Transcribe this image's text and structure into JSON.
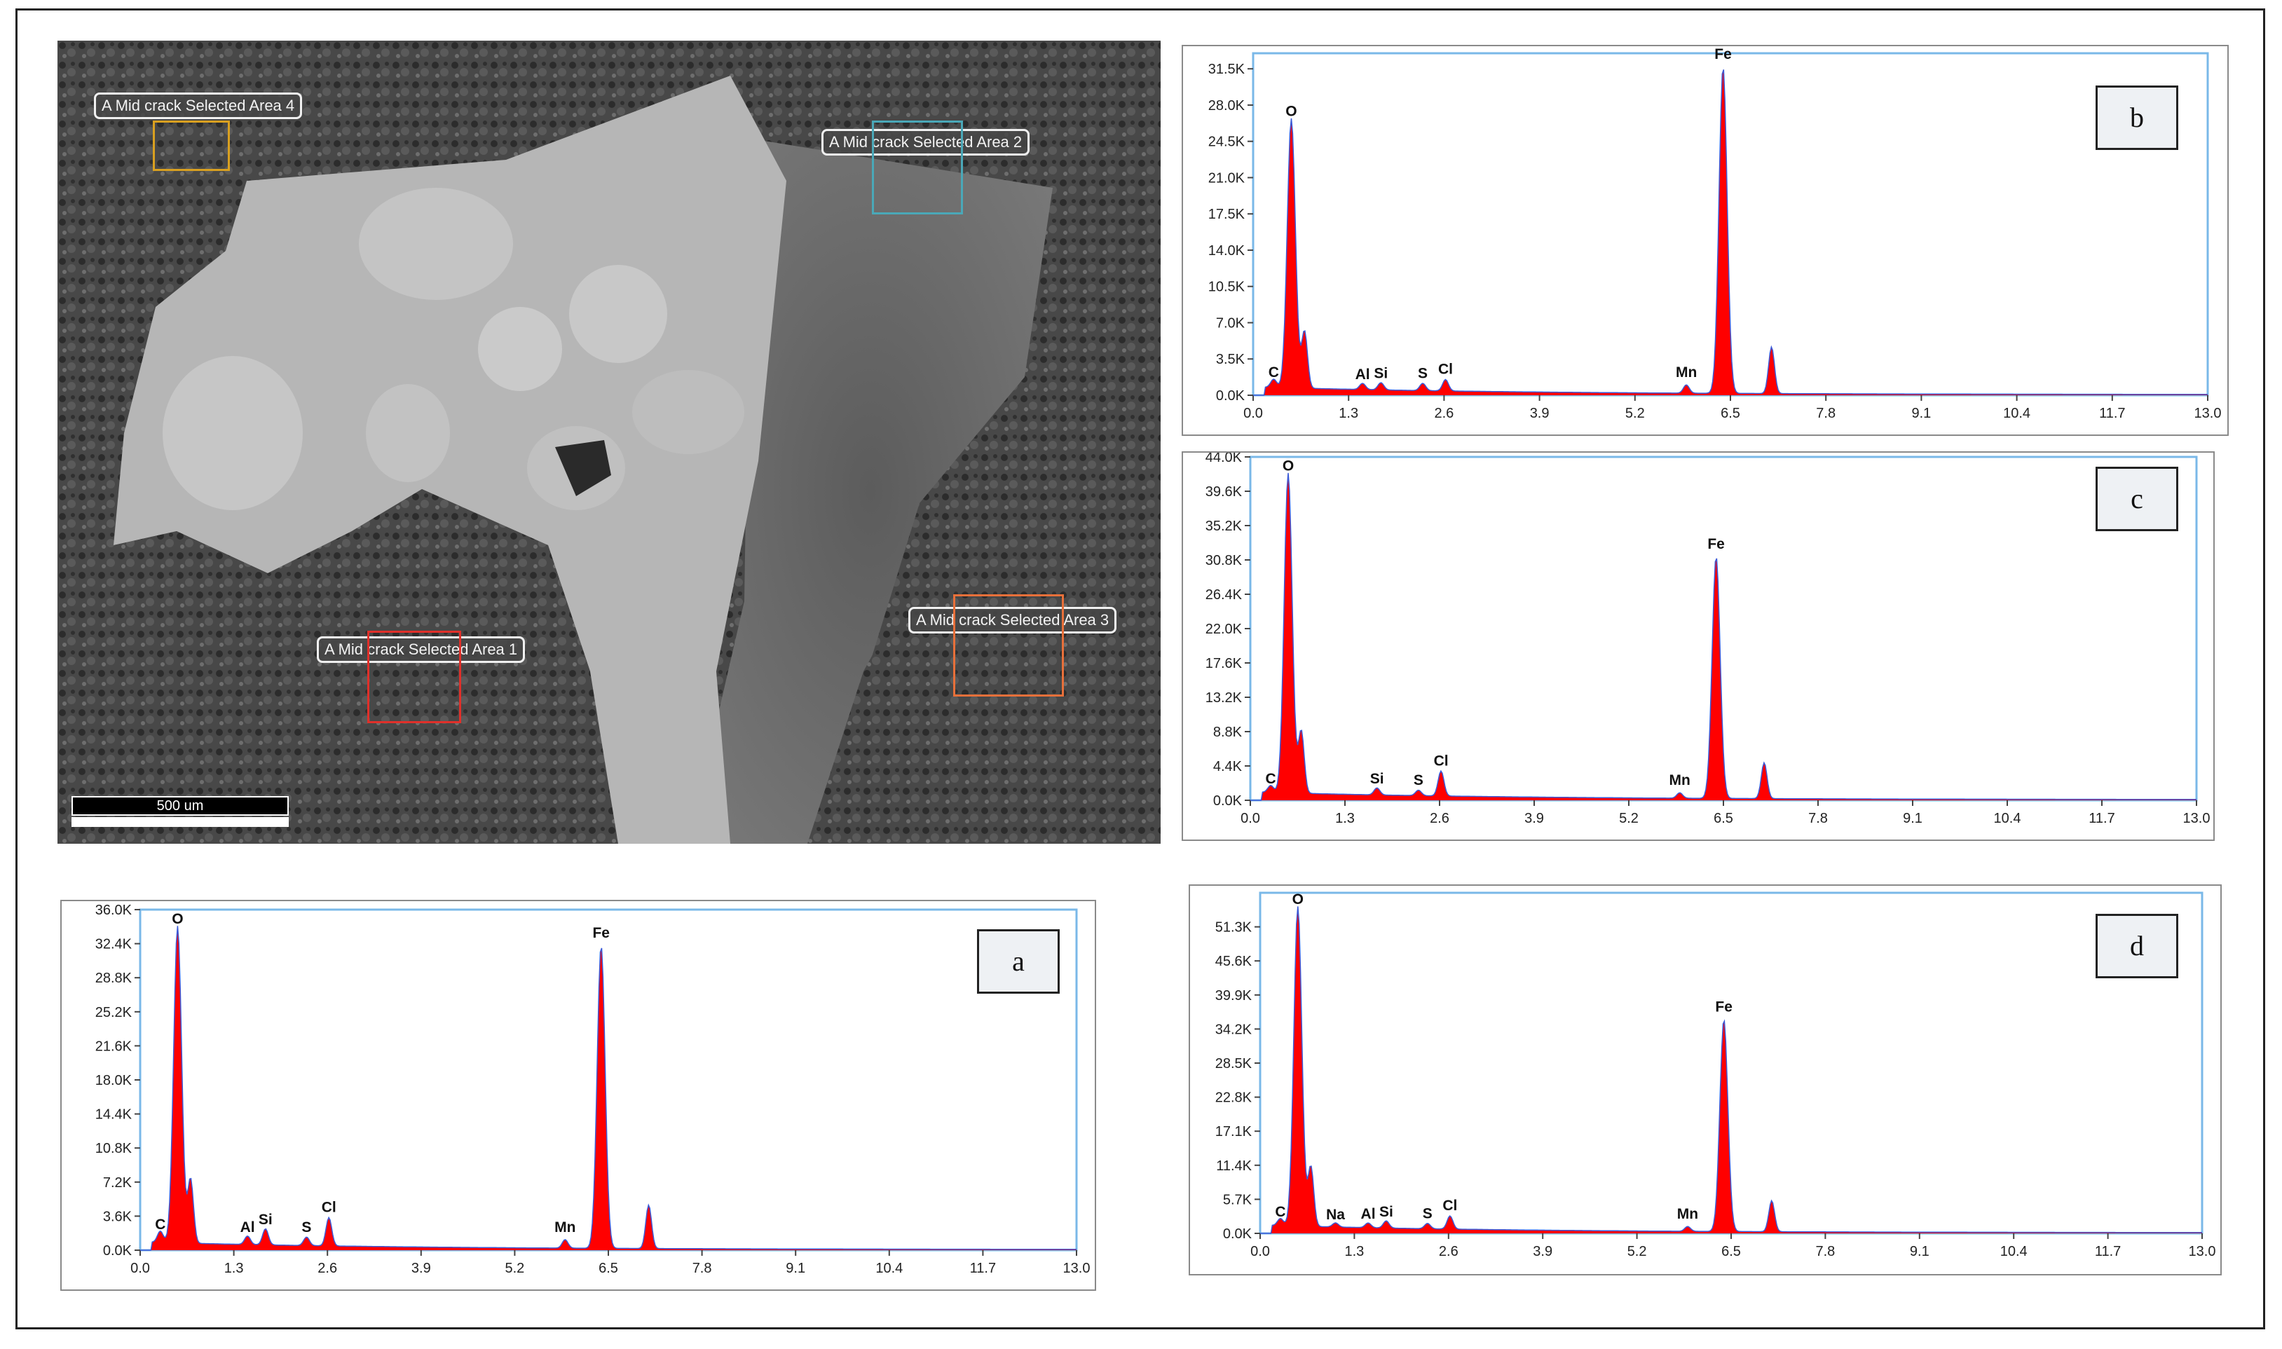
{
  "sem_image": {
    "scale_bar": "500 um",
    "regions": [
      {
        "label": "A Mid crack Selected Area 4",
        "color": "#d9a020"
      },
      {
        "label": "A Mid crack Selected Area 2",
        "color": "#4aa8b8"
      },
      {
        "label": "A Mid crack Selected Area 3",
        "color": "#e8703a"
      },
      {
        "label": "A Mid crack Selected Area 1",
        "color": "#e0302a"
      }
    ]
  },
  "colors": {
    "spectrum_fill": "#ff0000",
    "spectrum_line": "#3a5ad8",
    "axis_frame": "#7ab8e8"
  },
  "chart_data": [
    {
      "id": "b",
      "type": "area",
      "panel_label": "b",
      "x_ticks": [
        "0.0",
        "1.3",
        "2.6",
        "3.9",
        "5.2",
        "6.5",
        "7.8",
        "9.1",
        "10.4",
        "11.7",
        "13.0"
      ],
      "y_ticks": [
        "0.0K",
        "3.5K",
        "7.0K",
        "10.5K",
        "14.0K",
        "17.5K",
        "21.0K",
        "24.5K",
        "28.0K",
        "31.5K"
      ],
      "xlim": [
        0,
        13.0
      ],
      "ylim": [
        0,
        33000
      ],
      "peaks": [
        {
          "element": "C",
          "x": 0.28,
          "y": 800
        },
        {
          "element": "O",
          "x": 0.52,
          "y": 26000
        },
        {
          "element": "",
          "x": 0.7,
          "y": 5500
        },
        {
          "element": "Al",
          "x": 1.49,
          "y": 600
        },
        {
          "element": "Si",
          "x": 1.74,
          "y": 700
        },
        {
          "element": "S",
          "x": 2.31,
          "y": 700
        },
        {
          "element": "Cl",
          "x": 2.62,
          "y": 1100
        },
        {
          "element": "Mn",
          "x": 5.9,
          "y": 800
        },
        {
          "element": "Fe",
          "x": 6.4,
          "y": 31500
        },
        {
          "element": "",
          "x": 7.06,
          "y": 4500
        }
      ]
    },
    {
      "id": "c",
      "type": "area",
      "panel_label": "c",
      "x_ticks": [
        "0.0",
        "1.3",
        "2.6",
        "3.9",
        "5.2",
        "6.5",
        "7.8",
        "9.1",
        "10.4",
        "11.7",
        "13.0"
      ],
      "y_ticks": [
        "0.0K",
        "4.4K",
        "8.8K",
        "13.2K",
        "17.6K",
        "22.0K",
        "26.4K",
        "30.8K",
        "35.2K",
        "39.6K",
        "44.0K"
      ],
      "xlim": [
        0,
        13.0
      ],
      "ylim": [
        0,
        44000
      ],
      "peaks": [
        {
          "element": "C",
          "x": 0.28,
          "y": 900
        },
        {
          "element": "O",
          "x": 0.52,
          "y": 41000
        },
        {
          "element": "",
          "x": 0.7,
          "y": 8000
        },
        {
          "element": "Si",
          "x": 1.74,
          "y": 900
        },
        {
          "element": "S",
          "x": 2.31,
          "y": 700
        },
        {
          "element": "Cl",
          "x": 2.62,
          "y": 3200
        },
        {
          "element": "Mn",
          "x": 5.9,
          "y": 700
        },
        {
          "element": "Fe",
          "x": 6.4,
          "y": 31000
        },
        {
          "element": "",
          "x": 7.06,
          "y": 4600
        }
      ]
    },
    {
      "id": "a",
      "type": "area",
      "panel_label": "a",
      "x_ticks": [
        "0.0",
        "1.3",
        "2.6",
        "3.9",
        "5.2",
        "6.5",
        "7.8",
        "9.1",
        "10.4",
        "11.7",
        "13.0"
      ],
      "y_ticks": [
        "0.0K",
        "3.6K",
        "7.2K",
        "10.8K",
        "14.4K",
        "18.0K",
        "21.6K",
        "25.2K",
        "28.8K",
        "32.4K",
        "36.0K"
      ],
      "xlim": [
        0,
        13.0
      ],
      "ylim": [
        0,
        36000
      ],
      "peaks": [
        {
          "element": "C",
          "x": 0.28,
          "y": 1200
        },
        {
          "element": "O",
          "x": 0.52,
          "y": 33500
        },
        {
          "element": "",
          "x": 0.7,
          "y": 6800
        },
        {
          "element": "Al",
          "x": 1.49,
          "y": 900
        },
        {
          "element": "Si",
          "x": 1.74,
          "y": 1700
        },
        {
          "element": "S",
          "x": 2.31,
          "y": 900
        },
        {
          "element": "Cl",
          "x": 2.62,
          "y": 3000
        },
        {
          "element": "Mn",
          "x": 5.9,
          "y": 900
        },
        {
          "element": "Fe",
          "x": 6.4,
          "y": 32000
        },
        {
          "element": "",
          "x": 7.06,
          "y": 4600
        }
      ]
    },
    {
      "id": "d",
      "type": "area",
      "panel_label": "d",
      "x_ticks": [
        "0.0",
        "1.3",
        "2.6",
        "3.9",
        "5.2",
        "6.5",
        "7.8",
        "9.1",
        "10.4",
        "11.7",
        "13.0"
      ],
      "y_ticks": [
        "0.0K",
        "5.7K",
        "11.4K",
        "17.1K",
        "22.8K",
        "28.5K",
        "34.2K",
        "39.9K",
        "45.6K",
        "51.3K"
      ],
      "xlim": [
        0,
        13.0
      ],
      "ylim": [
        0,
        57000
      ],
      "peaks": [
        {
          "element": "C",
          "x": 0.28,
          "y": 1200
        },
        {
          "element": "O",
          "x": 0.52,
          "y": 53500
        },
        {
          "element": "",
          "x": 0.7,
          "y": 10000
        },
        {
          "element": "Na",
          "x": 1.04,
          "y": 700
        },
        {
          "element": "Al",
          "x": 1.49,
          "y": 800
        },
        {
          "element": "Si",
          "x": 1.74,
          "y": 1200
        },
        {
          "element": "S",
          "x": 2.31,
          "y": 900
        },
        {
          "element": "Cl",
          "x": 2.62,
          "y": 2200
        },
        {
          "element": "Mn",
          "x": 5.9,
          "y": 800
        },
        {
          "element": "Fe",
          "x": 6.4,
          "y": 35500
        },
        {
          "element": "",
          "x": 7.06,
          "y": 5200
        }
      ]
    }
  ]
}
